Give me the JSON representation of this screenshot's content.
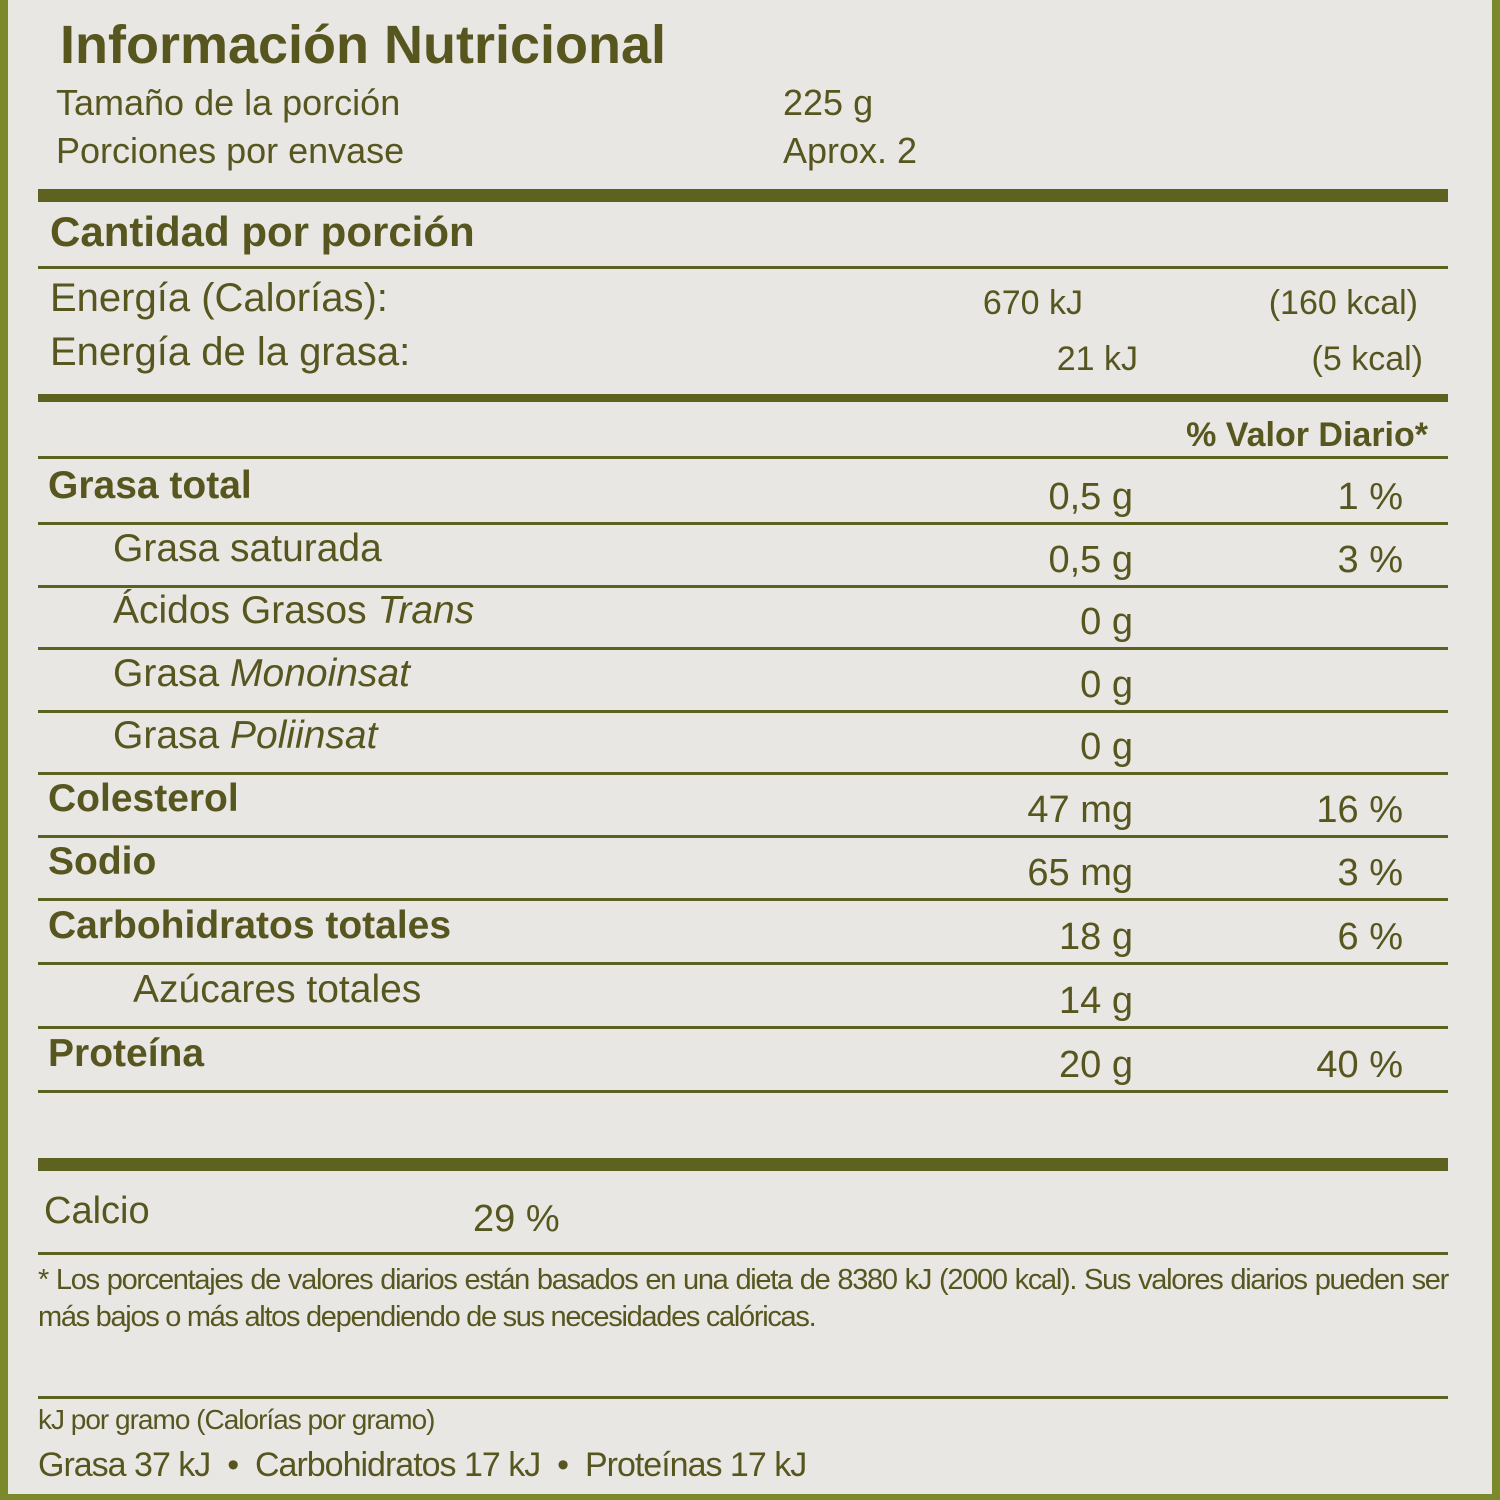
{
  "title": "Información Nutricional",
  "serving_size": {
    "label": "Tamaño de la porción",
    "value": "225 g"
  },
  "servings_per_container": {
    "label": "Porciones por envase",
    "value": "Aprox. 2"
  },
  "amount_per_serving": "Cantidad por porción",
  "energy": {
    "label": "Energía (Calorías):",
    "kj": "670 kJ",
    "kcal": "(160 kcal)"
  },
  "energy_fat": {
    "label": "Energía de la grasa:",
    "kj": "21 kJ",
    "kcal": "(5 kcal)"
  },
  "dv_header": "% Valor Diario*",
  "nutrients": [
    {
      "label": "Grasa total",
      "amount": "0,5 g",
      "dv": "1 %"
    },
    {
      "label": "Grasa saturada",
      "amount": "0,5 g",
      "dv": "3 %"
    },
    {
      "label": "Ácidos Grasos ",
      "label_italic": "Trans",
      "amount": "0 g",
      "dv": ""
    },
    {
      "label": "Grasa ",
      "label_italic": "Monoinsat",
      "amount": "0 g",
      "dv": ""
    },
    {
      "label": "Grasa ",
      "label_italic": "Poliinsat",
      "amount": "0 g",
      "dv": ""
    },
    {
      "label": "Colesterol",
      "amount": "47 mg",
      "dv": "16 %"
    },
    {
      "label": "Sodio",
      "amount": "65 mg",
      "dv": "3 %"
    },
    {
      "label": "Carbohidratos totales",
      "amount": "18 g",
      "dv": "6 %"
    },
    {
      "label": "Azúcares totales",
      "amount": "14 g",
      "dv": ""
    },
    {
      "label": "Proteína",
      "amount": "20 g",
      "dv": "40 %"
    }
  ],
  "calcium": {
    "label": "Calcio",
    "dv": "29 %"
  },
  "footnote": "* Los porcentajes de valores diarios están basados en una dieta de 8380 kJ (2000 kcal). Sus valores diarios pueden ser más bajos o más altos dependiendo de sus necesidades calóricas.",
  "per_gram_header": "kJ por gramo (Calorías por gramo)",
  "per_gram": "Grasa 37 kJ  •  Carbohidratos 17 kJ  •  Proteínas 17 kJ",
  "colors": {
    "text": "#57561f",
    "rule": "#5e6220",
    "background": "#e9e7e4",
    "border": "#7a8a2a"
  }
}
